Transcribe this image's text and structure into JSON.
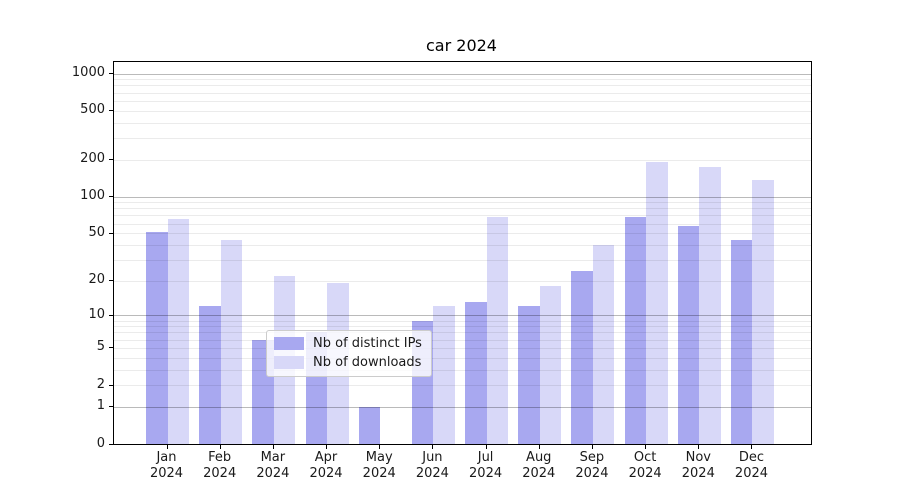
{
  "figure": {
    "background": "#ffffff",
    "axis_color": "#000000",
    "text_color": "#1a1a1a",
    "legend_border_color": "#cccccc"
  },
  "chart_data": {
    "type": "bar",
    "title": "car 2024",
    "categories": [
      "Jan",
      "Feb",
      "Mar",
      "Apr",
      "May",
      "Jun",
      "Jul",
      "Aug",
      "Sep",
      "Oct",
      "Nov",
      "Dec"
    ],
    "year": "2024",
    "series": [
      {
        "name": "Nb of distinct IPs",
        "color": "#a8a8f0",
        "values": [
          51,
          12,
          6,
          7,
          1,
          9,
          13,
          12,
          24,
          68,
          57,
          44
        ]
      },
      {
        "name": "Nb of downloads",
        "color": "#d8d8f8",
        "values": [
          65,
          44,
          22,
          19,
          0,
          12,
          68,
          18,
          40,
          190,
          175,
          137
        ]
      }
    ],
    "xlabel": "",
    "ylabel": "",
    "yscale": "log1p",
    "ylim": [
      0,
      1240
    ],
    "yticks": [
      1000,
      500,
      200,
      100,
      50,
      20,
      10,
      5,
      2,
      1,
      0
    ],
    "grid": {
      "enabled": true,
      "which": "both",
      "major_decades": [
        1,
        10,
        100,
        1000
      ]
    },
    "legend": {
      "position": "lower center"
    }
  }
}
